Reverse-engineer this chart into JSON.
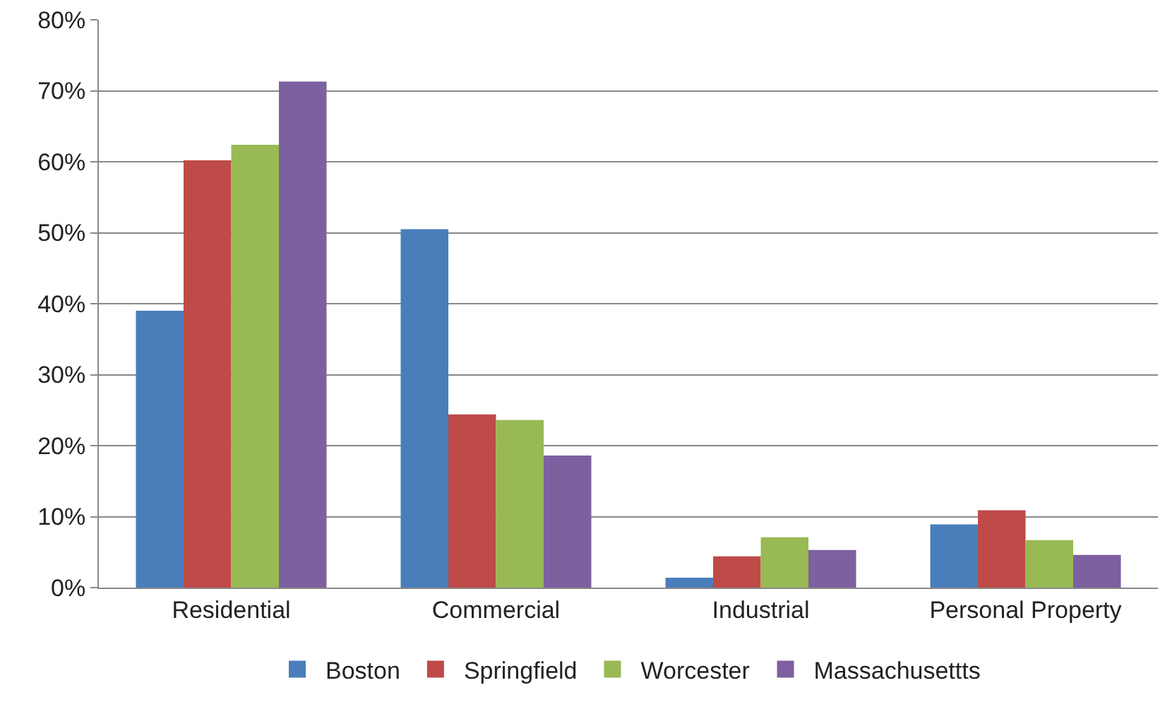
{
  "chart_data": {
    "type": "bar",
    "categories": [
      "Residential",
      "Commercial",
      "Industrial",
      "Personal Property"
    ],
    "series": [
      {
        "name": "Boston",
        "color": "#4a7ebb",
        "values": [
          39,
          50.5,
          1.4,
          8.9
        ]
      },
      {
        "name": "Springfield",
        "color": "#be4b48",
        "values": [
          60.2,
          24.4,
          4.4,
          10.9
        ]
      },
      {
        "name": "Worcester",
        "color": "#98b954",
        "values": [
          62.4,
          23.6,
          7.1,
          6.7
        ]
      },
      {
        "name": "Massachusettts",
        "color": "#7d60a0",
        "values": [
          71.3,
          18.6,
          5.3,
          4.6
        ]
      }
    ],
    "ylim": [
      0,
      80
    ],
    "yticks": [
      {
        "value": 0,
        "label": "0%"
      },
      {
        "value": 10,
        "label": "10%"
      },
      {
        "value": 20,
        "label": "20%"
      },
      {
        "value": 30,
        "label": "30%"
      },
      {
        "value": 40,
        "label": "40%"
      },
      {
        "value": 50,
        "label": "50%"
      },
      {
        "value": 60,
        "label": "60%"
      },
      {
        "value": 70,
        "label": "70%"
      },
      {
        "value": 80,
        "label": "80%"
      }
    ],
    "grid": "y",
    "legend": "bottom"
  }
}
